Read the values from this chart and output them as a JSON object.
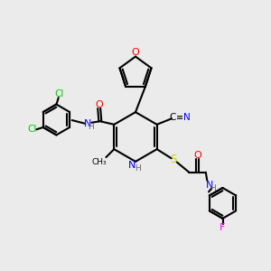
{
  "background_color": "#ebebeb",
  "atom_colors": {
    "O": "#ff0000",
    "N": "#0000ff",
    "Cl": "#00cc00",
    "S": "#cccc00",
    "F": "#ff00ff",
    "C": "#000000",
    "H": "#808080"
  }
}
